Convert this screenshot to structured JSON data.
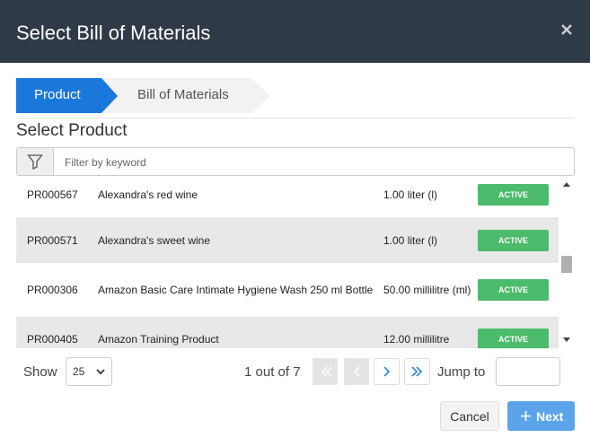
{
  "header": {
    "title": "Select Bill of Materials"
  },
  "steps": [
    "Product",
    "Bill of Materials"
  ],
  "section_title": "Select Product",
  "filter": {
    "placeholder": "Filter by keyword"
  },
  "rows": [
    {
      "code": "PR000567",
      "name": "Alexandra's red wine",
      "quantity": "1.00 liter (l)",
      "status": "ACTIVE"
    },
    {
      "code": "PR000571",
      "name": "Alexandra's sweet wine",
      "quantity": "1.00 liter (l)",
      "status": "ACTIVE"
    },
    {
      "code": "PR000306",
      "name": "Amazon Basic Care Intimate Hygiene Wash 250 ml Bottle",
      "quantity": "50.00 millilitre (ml)",
      "status": "ACTIVE"
    },
    {
      "code": "PR000405",
      "name": "Amazon Training Product",
      "quantity": "12.00 millilitre",
      "status": "ACTIVE"
    }
  ],
  "footer": {
    "show_label": "Show",
    "page_size": "25",
    "page_info": "1 out of 7",
    "jump_label": "Jump to"
  },
  "buttons": {
    "cancel": "Cancel",
    "next": "Next"
  }
}
